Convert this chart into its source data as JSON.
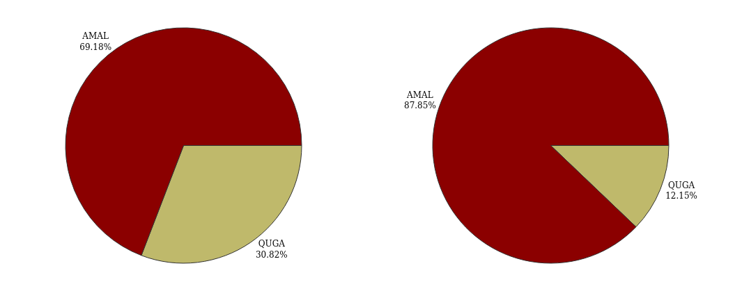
{
  "chart_data": [
    {
      "type": "pie",
      "categories": [
        "QUGA",
        "AMAL"
      ],
      "values": [
        30.82,
        69.18
      ],
      "colors": [
        "#bfb96b",
        "#8b0000"
      ],
      "value_labels": [
        "30.82%",
        "69.18%"
      ]
    },
    {
      "type": "pie",
      "categories": [
        "QUGA",
        "AMAL"
      ],
      "values": [
        12.15,
        87.85
      ],
      "colors": [
        "#bfb96b",
        "#8b0000"
      ],
      "value_labels": [
        "12.15%",
        "87.85%"
      ]
    }
  ]
}
